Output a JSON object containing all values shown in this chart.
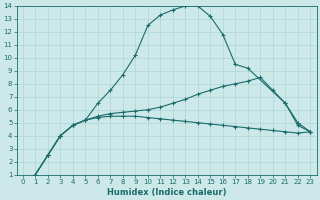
{
  "xlabel": "Humidex (Indice chaleur)",
  "xlim": [
    -0.5,
    23.5
  ],
  "ylim": [
    1,
    14
  ],
  "xticks": [
    0,
    1,
    2,
    3,
    4,
    5,
    6,
    7,
    8,
    9,
    10,
    11,
    12,
    13,
    14,
    15,
    16,
    17,
    18,
    19,
    20,
    21,
    22,
    23
  ],
  "yticks": [
    1,
    2,
    3,
    4,
    5,
    6,
    7,
    8,
    9,
    10,
    11,
    12,
    13,
    14
  ],
  "bg_color": "#cce8e8",
  "line_color": "#1a6b6b",
  "grid_color": "#aed4d4",
  "curves": [
    {
      "x": [
        1,
        2,
        3,
        4,
        5,
        6,
        7,
        8,
        9,
        10,
        11,
        12,
        13,
        14,
        15,
        16,
        17,
        18,
        21,
        22,
        23
      ],
      "y": [
        1,
        2.5,
        4,
        4.8,
        5.2,
        6.5,
        7.5,
        8.7,
        10.2,
        12.5,
        13.3,
        13.7,
        14.0,
        14.0,
        13.2,
        11.8,
        9.5,
        9.2,
        6.5,
        5.0,
        4.3
      ]
    },
    {
      "x": [
        1,
        2,
        3,
        4,
        5,
        6,
        7,
        8,
        9,
        10,
        11,
        12,
        13,
        14,
        15,
        16,
        17,
        18,
        19,
        20,
        21,
        22,
        23
      ],
      "y": [
        1,
        2.5,
        4,
        4.8,
        5.2,
        5.5,
        5.7,
        5.8,
        5.9,
        6.0,
        6.2,
        6.5,
        6.8,
        7.2,
        7.5,
        7.8,
        8.0,
        8.2,
        8.5,
        7.5,
        6.5,
        4.8,
        4.3
      ]
    },
    {
      "x": [
        1,
        2,
        3,
        4,
        5,
        6,
        7,
        8,
        9,
        10,
        11,
        12,
        13,
        14,
        15,
        16,
        17,
        18,
        19,
        20,
        21,
        22,
        23
      ],
      "y": [
        1,
        2.5,
        4,
        4.8,
        5.2,
        5.4,
        5.5,
        5.5,
        5.5,
        5.4,
        5.3,
        5.2,
        5.1,
        5.0,
        4.9,
        4.8,
        4.7,
        4.6,
        4.5,
        4.4,
        4.3,
        4.2,
        4.3
      ]
    }
  ]
}
